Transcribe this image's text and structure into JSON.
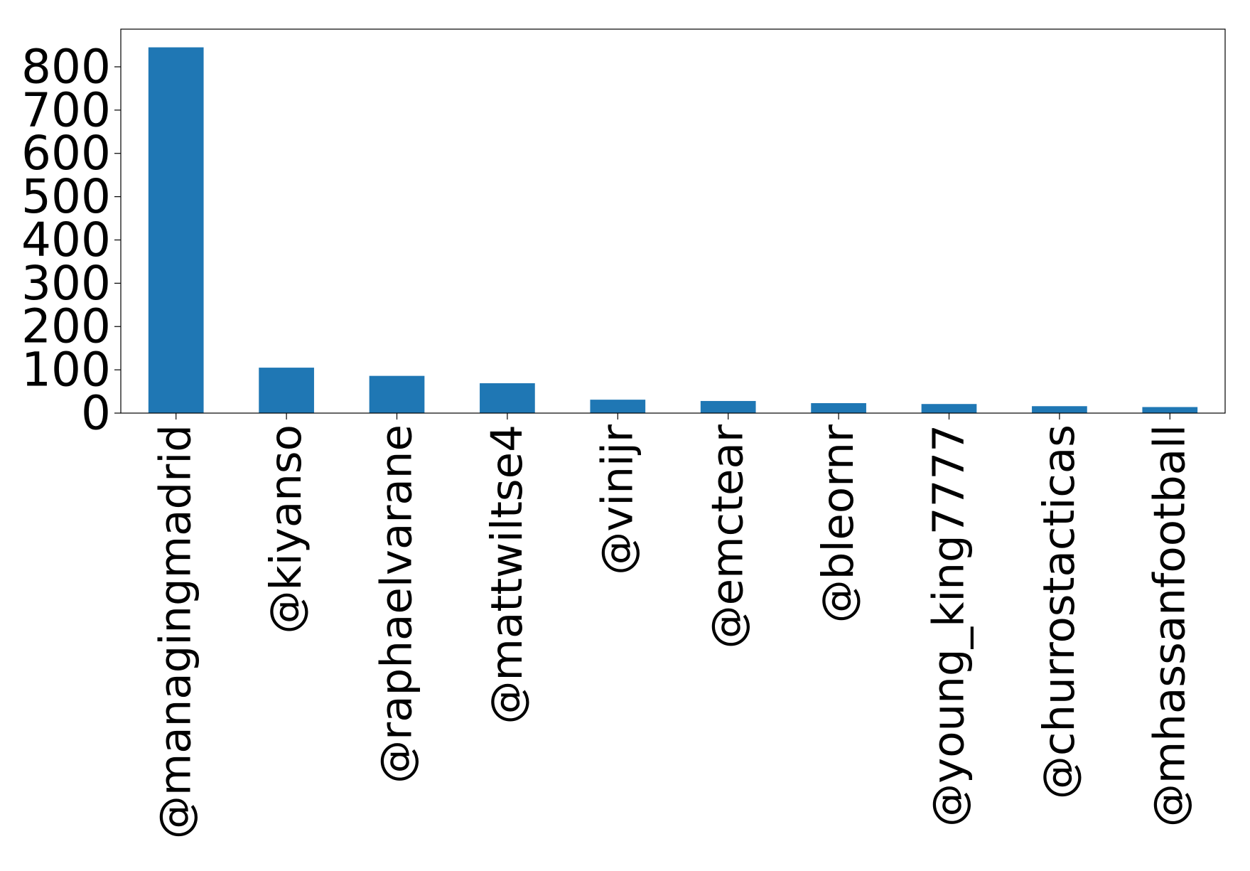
{
  "chart_data": {
    "type": "bar",
    "title": "",
    "xlabel": "",
    "ylabel": "",
    "categories": [
      "@managingmadrid",
      "@kiyanso",
      "@raphaelvarane",
      "@mattwiltse4",
      "@vinijr",
      "@emctear",
      "@bleornr",
      "@young_king7777",
      "@churrostacticas",
      "@mhassanfootball"
    ],
    "values": [
      845,
      105,
      86,
      69,
      31,
      28,
      23,
      21,
      16,
      14
    ],
    "ylim": [
      0,
      887
    ],
    "yticks": [
      0,
      100,
      200,
      300,
      400,
      500,
      600,
      700,
      800
    ],
    "bar_color": "#1f77b4",
    "grid": false,
    "legend": "none"
  }
}
